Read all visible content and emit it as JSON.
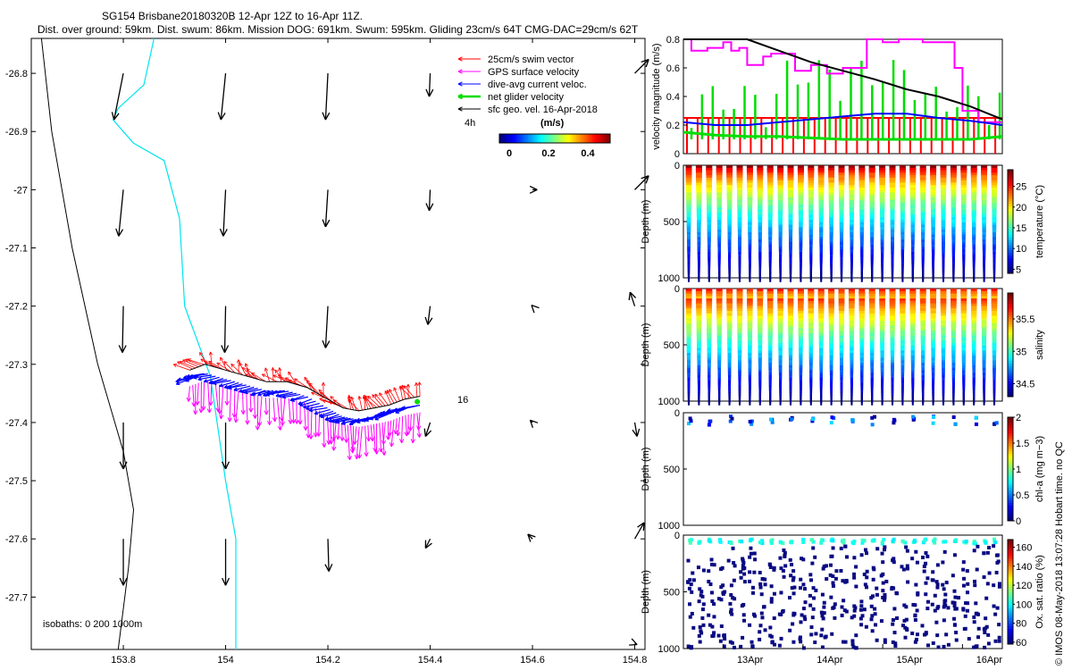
{
  "header": {
    "title": "SG154 Brisbane20180320B 12-Apr 12Z to 16-Apr 11Z.",
    "subtitle": "Dist. over ground: 59km. Dist. swum: 86km. Mission DOG: 691km. Swum: 595km. Gliding 23cm/s 64T CMG-DAC=29cm/s 62T"
  },
  "colors": {
    "swim": "#ff0000",
    "gps": "#ff00ff",
    "dac": "#0000ff",
    "net": "#00dd00",
    "sfc": "#000000",
    "coast": "#000000",
    "isobath": "#00e5ee"
  },
  "legend": {
    "items": [
      {
        "label": "25cm/s swim vector",
        "color": "#ff0000"
      },
      {
        "label": "GPS surface velocity",
        "color": "#ff00ff"
      },
      {
        "label": "dive-avg current veloc.",
        "color": "#0000ff"
      },
      {
        "label": "net glider velocity",
        "color": "#00dd00"
      },
      {
        "label": "sfc geo. vel. 16-Apr-2018",
        "color": "#000000"
      }
    ],
    "interval_label": "4h",
    "colorbar_unit": "(m/s)",
    "colorbar_ticks": [
      "0",
      "0.2",
      "0.4"
    ]
  },
  "annotations": {
    "dive_number": "16",
    "isobaths": "isobaths: 0   200  1000m",
    "credit": "© IMOS 08-May-2018 13:07:28 Hobart time. no QC"
  },
  "chart_data": [
    {
      "type": "scatter",
      "name": "map",
      "xlim": [
        153.62,
        154.82
      ],
      "ylim": [
        -27.79,
        -26.74
      ],
      "x_ticks": [
        "153.8",
        "154",
        "154.2",
        "154.4",
        "154.6",
        "154.8"
      ],
      "y_ticks": [
        "-26.8",
        "-26.9",
        "-27",
        "-27.1",
        "-27.2",
        "-27.3",
        "-27.4",
        "-27.5",
        "-27.6",
        "-27.7"
      ],
      "coastline": [
        [
          153.64,
          -26.74
        ],
        [
          153.66,
          -26.9
        ],
        [
          153.7,
          -27.1
        ],
        [
          153.75,
          -27.3
        ],
        [
          153.8,
          -27.45
        ],
        [
          153.82,
          -27.55
        ],
        [
          153.81,
          -27.65
        ],
        [
          153.79,
          -27.79
        ]
      ],
      "isobath_200": [
        [
          153.86,
          -26.74
        ],
        [
          153.84,
          -26.82
        ],
        [
          153.79,
          -26.86
        ],
        [
          153.78,
          -26.88
        ],
        [
          153.82,
          -26.92
        ],
        [
          153.88,
          -26.95
        ],
        [
          153.91,
          -27.05
        ],
        [
          153.92,
          -27.2
        ],
        [
          153.97,
          -27.32
        ],
        [
          154.0,
          -27.5
        ],
        [
          154.02,
          -27.6
        ],
        [
          154.02,
          -27.79
        ]
      ],
      "track": [
        [
          153.93,
          -27.31
        ],
        [
          153.96,
          -27.3
        ],
        [
          154.0,
          -27.31
        ],
        [
          154.04,
          -27.32
        ],
        [
          154.08,
          -27.33
        ],
        [
          154.12,
          -27.33
        ],
        [
          154.16,
          -27.34
        ],
        [
          154.2,
          -27.36
        ],
        [
          154.23,
          -27.375
        ],
        [
          154.26,
          -27.38
        ],
        [
          154.29,
          -27.375
        ],
        [
          154.32,
          -27.37
        ],
        [
          154.35,
          -27.36
        ],
        [
          154.38,
          -27.355
        ]
      ],
      "sfc_vectors": [
        [
          153.8,
          -26.8,
          -0.2,
          -1
        ],
        [
          154.0,
          -26.8,
          -0.1,
          -1
        ],
        [
          154.2,
          -26.8,
          -0.05,
          -1
        ],
        [
          154.4,
          -26.8,
          -0.02,
          -0.5
        ],
        [
          154.8,
          -26.8,
          0.3,
          0.3
        ],
        [
          153.8,
          -27.0,
          -0.1,
          -1
        ],
        [
          154.0,
          -27.0,
          -0.05,
          -1
        ],
        [
          154.2,
          -27.0,
          -0.05,
          -0.8
        ],
        [
          154.4,
          -27.0,
          -0.02,
          -0.45
        ],
        [
          154.6,
          -27.0,
          0.1,
          0.0
        ],
        [
          154.8,
          -27.0,
          0.3,
          0.3
        ],
        [
          153.8,
          -27.2,
          -0.02,
          -1
        ],
        [
          154.0,
          -27.2,
          -0.02,
          -1
        ],
        [
          154.2,
          -27.2,
          -0.05,
          -0.9
        ],
        [
          154.4,
          -27.2,
          -0.05,
          -0.4
        ],
        [
          154.6,
          -27.2,
          -0.02,
          0.02
        ],
        [
          154.8,
          -27.2,
          -0.1,
          0.3
        ],
        [
          153.8,
          -27.4,
          0.0,
          -1
        ],
        [
          154.0,
          -27.4,
          0.0,
          -1
        ],
        [
          154.4,
          -27.4,
          -0.1,
          -0.3
        ],
        [
          154.6,
          -27.4,
          -0.05,
          0.05
        ],
        [
          154.8,
          -27.4,
          0.05,
          -0.3
        ],
        [
          153.8,
          -27.6,
          0.0,
          -1
        ],
        [
          154.0,
          -27.6,
          0.0,
          -1
        ],
        [
          154.2,
          -27.6,
          0.02,
          -0.7
        ],
        [
          154.4,
          -27.6,
          -0.1,
          -0.2
        ],
        [
          154.6,
          -27.6,
          -0.1,
          0.1
        ],
        [
          154.8,
          -27.6,
          0.2,
          0.35
        ],
        [
          153.8,
          -27.75,
          0,
          0
        ],
        [
          154.8,
          -27.78,
          0.05,
          -0.02
        ]
      ]
    },
    {
      "type": "line",
      "name": "velocity magnitude",
      "ylabel": "velocity magnitude (m/s)",
      "ylim": [
        0,
        0.8
      ],
      "y_ticks": [
        "0",
        "0.2",
        "0.4",
        "0.6",
        "0.8"
      ],
      "x_range_days": [
        12.5,
        16.5
      ],
      "series": [
        {
          "label": "GPS surface velocity",
          "x": [
            12.5,
            12.6,
            12.6,
            12.8,
            12.8,
            13.0,
            13.0,
            13.1,
            13.1,
            13.2,
            13.2,
            13.3,
            13.3,
            13.5,
            13.5,
            13.6,
            13.6,
            13.9,
            13.9,
            14.1,
            14.1,
            14.3,
            14.3,
            14.5,
            14.5,
            14.8,
            14.8,
            15.0,
            15.0,
            15.2,
            15.2,
            15.5,
            15.5,
            15.9,
            15.9,
            16.0,
            16.0,
            16.2,
            16.2,
            16.5
          ],
          "y": [
            0.8,
            0.8,
            0.72,
            0.72,
            0.74,
            0.74,
            0.78,
            0.78,
            0.72,
            0.72,
            0.74,
            0.74,
            0.62,
            0.62,
            0.68,
            0.68,
            0.7,
            0.7,
            0.58,
            0.58,
            0.62,
            0.62,
            0.56,
            0.56,
            0.6,
            0.6,
            0.8,
            0.8,
            0.78,
            0.78,
            0.8,
            0.8,
            0.78,
            0.78,
            0.6,
            0.6,
            0.3,
            0.3,
            0.22,
            0.22
          ]
        },
        {
          "label": "dive-avg current veloc.",
          "x": [
            12.5,
            12.9,
            13.3,
            13.7,
            14.1,
            14.5,
            14.9,
            15.3,
            15.7,
            16.1,
            16.5
          ],
          "y": [
            0.22,
            0.2,
            0.2,
            0.22,
            0.24,
            0.26,
            0.28,
            0.28,
            0.25,
            0.23,
            0.2
          ]
        },
        {
          "label": "sfc geo. vel.",
          "x": [
            12.5,
            12.9,
            13.3,
            13.7,
            14.1,
            14.5,
            14.9,
            15.3,
            15.7,
            16.1,
            16.5
          ],
          "y": [
            0.8,
            0.8,
            0.8,
            0.72,
            0.64,
            0.58,
            0.52,
            0.45,
            0.4,
            0.33,
            0.24
          ]
        },
        {
          "label": "net glider velocity",
          "x": [
            12.5,
            12.9,
            13.3,
            13.7,
            14.1,
            14.5,
            14.9,
            15.3,
            15.7,
            16.1,
            16.5
          ],
          "y": [
            0.15,
            0.13,
            0.12,
            0.12,
            0.11,
            0.1,
            0.1,
            0.1,
            0.1,
            0.1,
            0.12
          ]
        }
      ]
    },
    {
      "type": "scatter",
      "name": "temperature",
      "ylabel": "Depth (m)",
      "colorbar_label": "temperature (°C)",
      "colorbar_ticks": [
        "5",
        "10",
        "15",
        "20",
        "25"
      ],
      "clim": [
        4,
        29
      ],
      "ylim": [
        1000,
        0
      ],
      "y_ticks": [
        "0",
        "500",
        "1000"
      ]
    },
    {
      "type": "scatter",
      "name": "salinity",
      "ylabel": "Depth (m)",
      "colorbar_label": "salinity",
      "colorbar_ticks": [
        "34.5",
        "35",
        "35.5"
      ],
      "clim": [
        34.3,
        35.9
      ],
      "ylim": [
        1000,
        0
      ],
      "y_ticks": [
        "0",
        "500",
        "1000"
      ]
    },
    {
      "type": "scatter",
      "name": "chl-a",
      "ylabel": "Depth (m)",
      "colorbar_label": "chl-a (mg m−3)",
      "colorbar_ticks": [
        "0",
        "0.5",
        "1",
        "1.5",
        "2"
      ],
      "clim": [
        0,
        2
      ],
      "ylim": [
        1000,
        0
      ],
      "y_ticks": [
        "0",
        "500",
        "1000"
      ]
    },
    {
      "type": "scatter",
      "name": "oxygen saturation",
      "ylabel": "Depth (m)",
      "colorbar_label": "Ox. sat. ratio (%)",
      "colorbar_ticks": [
        "60",
        "80",
        "100",
        "120",
        "140",
        "160"
      ],
      "clim": [
        58,
        168
      ],
      "ylim": [
        1000,
        0
      ],
      "y_ticks": [
        "0",
        "500",
        "1000"
      ],
      "x_ticks": [
        "13Apr",
        "14Apr",
        "15Apr",
        "16Apr"
      ]
    }
  ]
}
